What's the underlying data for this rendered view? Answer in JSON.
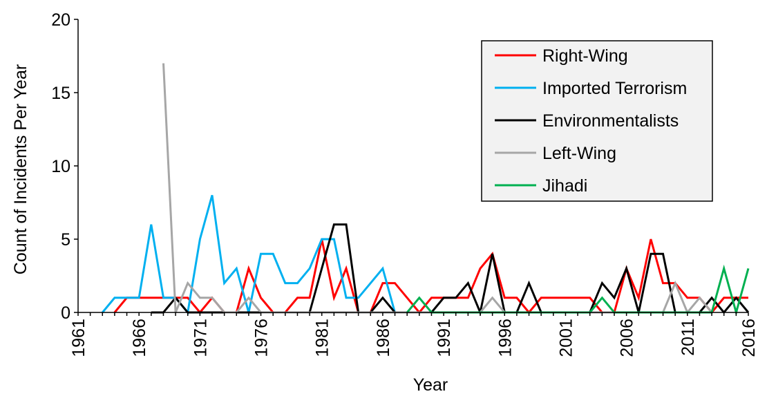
{
  "chart_data": {
    "type": "line",
    "title": "",
    "xlabel": "Year",
    "ylabel": "Count of Incidents Per Year",
    "xlim": [
      1961,
      2016
    ],
    "ylim": [
      0,
      20
    ],
    "xticks": [
      1961,
      1966,
      1971,
      1976,
      1981,
      1986,
      1991,
      1996,
      2001,
      2006,
      2011,
      2016
    ],
    "yticks": [
      0,
      5,
      10,
      15,
      20
    ],
    "grid": false,
    "legend_position": "top-right",
    "legend_background": "#f2f2f2",
    "series": [
      {
        "name": "Right-Wing",
        "color": "#ff0000",
        "x": [
          1964,
          1965,
          1966,
          1967,
          1968,
          1969,
          1970,
          1971,
          1972,
          1973,
          1974,
          1975,
          1976,
          1977,
          1978,
          1979,
          1980,
          1981,
          1982,
          1983,
          1984,
          1985,
          1986,
          1987,
          1988,
          1989,
          1990,
          1991,
          1992,
          1993,
          1994,
          1995,
          1996,
          1997,
          1998,
          1999,
          2000,
          2001,
          2002,
          2003,
          2004,
          2005,
          2006,
          2007,
          2008,
          2009,
          2010,
          2011,
          2012,
          2013,
          2014,
          2015,
          2016
        ],
        "values": [
          0,
          1,
          1,
          1,
          1,
          1,
          1,
          0,
          1,
          0,
          0,
          3,
          1,
          0,
          0,
          1,
          1,
          5,
          1,
          3,
          0,
          0,
          2,
          2,
          1,
          0,
          1,
          1,
          1,
          1,
          3,
          4,
          1,
          1,
          0,
          1,
          1,
          1,
          1,
          1,
          0,
          0,
          3,
          1,
          5,
          2,
          2,
          1,
          1,
          0,
          1,
          1,
          1
        ]
      },
      {
        "name": "Imported Terrorism",
        "color": "#00b0f0",
        "x": [
          1963,
          1964,
          1965,
          1966,
          1967,
          1968,
          1969,
          1970,
          1971,
          1972,
          1973,
          1974,
          1975,
          1976,
          1977,
          1978,
          1979,
          1980,
          1981,
          1982,
          1983,
          1984,
          1985,
          1986,
          1987
        ],
        "values": [
          0,
          1,
          1,
          1,
          6,
          1,
          1,
          0,
          5,
          8,
          2,
          3,
          0,
          4,
          4,
          2,
          2,
          3,
          5,
          5,
          1,
          1,
          2,
          3,
          0
        ]
      },
      {
        "name": "Environmentalists",
        "color": "#000000",
        "x": [
          1967,
          1968,
          1969,
          1970,
          1971,
          1972,
          1973,
          1974,
          1975,
          1976,
          1980,
          1981,
          1982,
          1983,
          1984,
          1985,
          1986,
          1987,
          1990,
          1991,
          1992,
          1993,
          1994,
          1995,
          1996,
          1997,
          1998,
          1999,
          2003,
          2004,
          2005,
          2006,
          2007,
          2008,
          2009,
          2010,
          2011,
          2012,
          2013,
          2014,
          2015,
          2016
        ],
        "values": [
          0,
          0,
          1,
          0,
          0,
          0,
          0,
          0,
          0,
          0,
          0,
          3,
          6,
          6,
          0,
          0,
          1,
          0,
          0,
          1,
          1,
          2,
          0,
          4,
          0,
          0,
          2,
          0,
          0,
          2,
          1,
          3,
          0,
          4,
          4,
          0,
          0,
          0,
          1,
          0,
          1,
          0
        ]
      },
      {
        "name": "Left-Wing",
        "color": "#a6a6a6",
        "x": [
          1968,
          1969,
          1970,
          1971,
          1972,
          1973,
          1974,
          1975,
          1976,
          1977,
          1978,
          1979,
          1980,
          1981,
          1982,
          1983,
          1984,
          1985,
          1986,
          1987,
          1988,
          1989,
          1990,
          1991,
          1992,
          1993,
          1994,
          1995,
          1996,
          1997,
          1998,
          1999,
          2000,
          2001,
          2002,
          2003,
          2004,
          2005,
          2006,
          2007,
          2008,
          2009,
          2010,
          2011,
          2012,
          2013
        ],
        "values": [
          17,
          0,
          2,
          1,
          1,
          0,
          0,
          1,
          0,
          0,
          0,
          0,
          0,
          0,
          0,
          0,
          0,
          0,
          0,
          0,
          0,
          0,
          0,
          0,
          0,
          0,
          0,
          1,
          0,
          0,
          0,
          0,
          0,
          0,
          0,
          0,
          0,
          0,
          0,
          0,
          0,
          0,
          2,
          0,
          1,
          0
        ]
      },
      {
        "name": "Jihadi",
        "color": "#00b050",
        "x": [
          1988,
          1989,
          1990,
          1991,
          1992,
          1993,
          1994,
          1995,
          1996,
          1997,
          1998,
          1999,
          2000,
          2001,
          2002,
          2003,
          2004,
          2005,
          2006,
          2007,
          2008,
          2009,
          2010,
          2011,
          2012,
          2013,
          2014,
          2015,
          2016
        ],
        "values": [
          0,
          1,
          0,
          0,
          0,
          0,
          0,
          0,
          0,
          0,
          0,
          0,
          0,
          0,
          0,
          0,
          1,
          0,
          0,
          0,
          0,
          0,
          0,
          0,
          0,
          0,
          3,
          0,
          3
        ]
      }
    ]
  }
}
